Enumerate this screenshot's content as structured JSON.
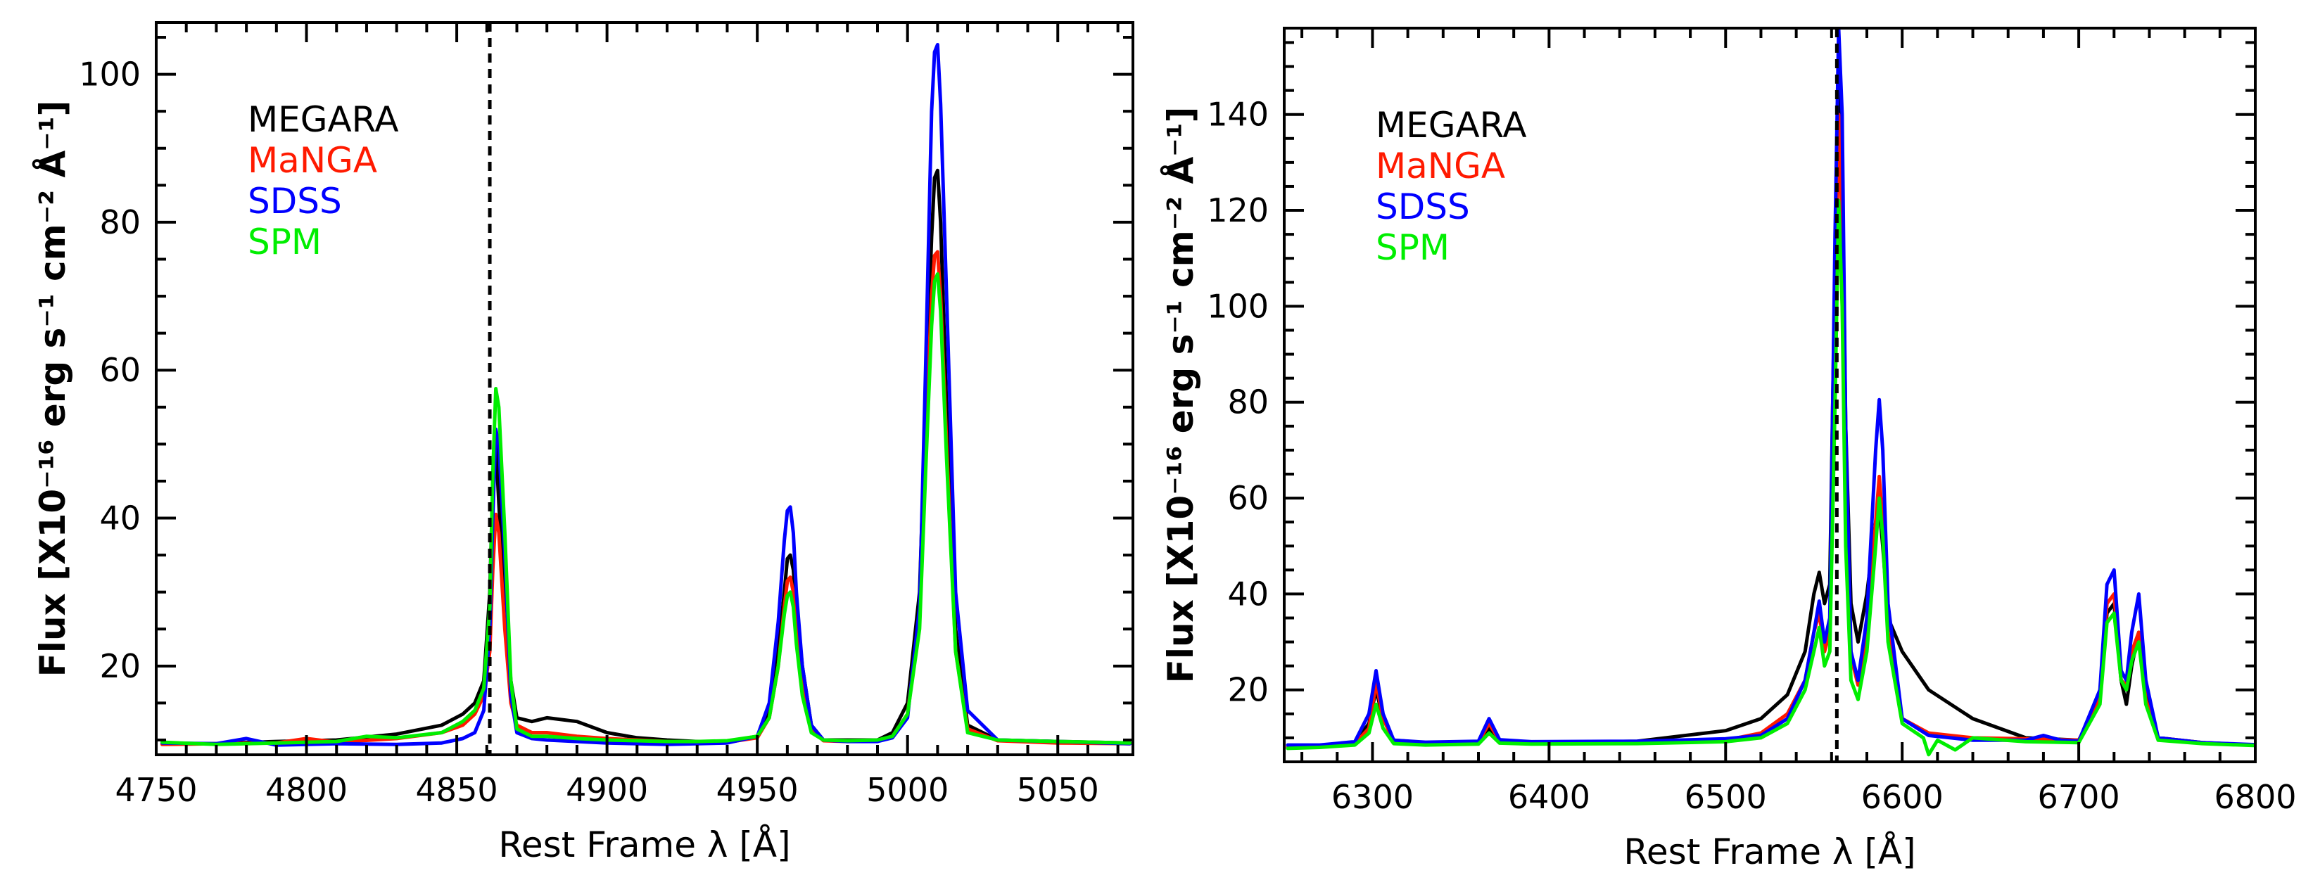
{
  "chart_data": [
    {
      "type": "line",
      "title": "",
      "xlabel": "Rest Frame λ [Å]",
      "ylabel": "Flux [X10⁻¹⁶ erg s⁻¹ cm⁻² Å⁻¹]",
      "xlim": [
        4750,
        5075
      ],
      "ylim": [
        8,
        107
      ],
      "xticks": [
        4750,
        4800,
        4850,
        4900,
        4950,
        5000,
        5050
      ],
      "yticks": [
        20,
        40,
        60,
        80,
        100
      ],
      "vline": 4861,
      "legend_position": "top-left",
      "series": [
        {
          "name": "MEGARA",
          "color": "#000000",
          "x": [
            4752,
            4770,
            4790,
            4810,
            4830,
            4845,
            4852,
            4856,
            4859,
            4861,
            4862,
            4863,
            4864,
            4866,
            4868,
            4870,
            4875,
            4880,
            4890,
            4900,
            4910,
            4920,
            4930,
            4940,
            4950,
            4954,
            4957,
            4959,
            4960,
            4961,
            4962,
            4963,
            4965,
            4968,
            4972,
            4980,
            4990,
            4995,
            5000,
            5004,
            5006,
            5008,
            5009,
            5010,
            5011,
            5013,
            5016,
            5020,
            5030,
            5050,
            5074
          ],
          "y": [
            9.5,
            9.5,
            9.8,
            10,
            10.8,
            12,
            13.5,
            15,
            18,
            30,
            45,
            50,
            42,
            28,
            18,
            13,
            12.5,
            13,
            12.5,
            11,
            10.3,
            10,
            9.8,
            9.8,
            10.5,
            14,
            22,
            30,
            34.5,
            35,
            33,
            28,
            20,
            12,
            10,
            10,
            10,
            11,
            15,
            30,
            55,
            78,
            86,
            87,
            80,
            55,
            25,
            12,
            10,
            9.8,
            9.6
          ]
        },
        {
          "name": "MaNGA",
          "color": "#ff1a00",
          "x": [
            4752,
            4770,
            4790,
            4800,
            4810,
            4830,
            4845,
            4852,
            4856,
            4859,
            4861,
            4862,
            4863,
            4864,
            4866,
            4868,
            4870,
            4875,
            4880,
            4890,
            4900,
            4910,
            4920,
            4930,
            4940,
            4950,
            4954,
            4957,
            4959,
            4960,
            4961,
            4962,
            4963,
            4965,
            4968,
            4972,
            4980,
            4990,
            4995,
            5000,
            5004,
            5006,
            5008,
            5009,
            5010,
            5011,
            5013,
            5016,
            5020,
            5030,
            5050,
            5074
          ],
          "y": [
            9.4,
            9.5,
            9.6,
            10.2,
            9.7,
            10.2,
            11,
            12,
            13.5,
            16,
            22,
            33,
            40.5,
            38,
            25,
            15,
            12,
            11,
            11,
            10.5,
            10.2,
            10,
            9.8,
            9.7,
            9.7,
            10.3,
            13,
            20,
            28,
            31.5,
            32,
            30,
            25,
            18,
            11.5,
            9.9,
            9.8,
            9.9,
            10.5,
            13.5,
            27,
            50,
            70,
            75.5,
            76,
            70,
            50,
            22,
            11.5,
            9.9,
            9.6,
            9.5
          ]
        },
        {
          "name": "SDSS",
          "color": "#0000ff",
          "x": [
            4752,
            4770,
            4780,
            4790,
            4810,
            4830,
            4845,
            4852,
            4856,
            4859,
            4861,
            4862,
            4863,
            4864,
            4866,
            4868,
            4870,
            4875,
            4880,
            4890,
            4900,
            4910,
            4920,
            4930,
            4940,
            4950,
            4954,
            4957,
            4959,
            4960,
            4961,
            4962,
            4963,
            4965,
            4968,
            4972,
            4980,
            4990,
            4995,
            5000,
            5004,
            5006,
            5008,
            5009,
            5010,
            5011,
            5013,
            5016,
            5020,
            5030,
            5050,
            5074
          ],
          "y": [
            9.6,
            9.5,
            10.2,
            9.3,
            9.5,
            9.4,
            9.6,
            10.2,
            11,
            14,
            25,
            40,
            52,
            50,
            35,
            16,
            11,
            10.2,
            10,
            9.8,
            9.6,
            9.5,
            9.4,
            9.5,
            9.6,
            10.5,
            15,
            26,
            37,
            41,
            41.5,
            38,
            30,
            20,
            12,
            10,
            9.8,
            9.8,
            10.3,
            13,
            28,
            60,
            95,
            103,
            104,
            96,
            70,
            30,
            14,
            10,
            9.8,
            9.5
          ]
        },
        {
          "name": "SPM",
          "color": "#00ee00",
          "x": [
            4752,
            4770,
            4790,
            4810,
            4820,
            4830,
            4845,
            4852,
            4856,
            4859,
            4861,
            4862,
            4863,
            4864,
            4866,
            4868,
            4870,
            4875,
            4880,
            4890,
            4900,
            4910,
            4920,
            4930,
            4940,
            4950,
            4954,
            4957,
            4959,
            4960,
            4961,
            4962,
            4963,
            4965,
            4968,
            4972,
            4980,
            4990,
            4995,
            5000,
            5004,
            5006,
            5008,
            5009,
            5010,
            5011,
            5013,
            5016,
            5020,
            5030,
            5050,
            5074
          ],
          "y": [
            9.7,
            9.4,
            9.6,
            9.8,
            10.5,
            10.3,
            11,
            12.5,
            14,
            17,
            28,
            46,
            57.5,
            55,
            38,
            18,
            11.5,
            10.5,
            10.5,
            10.2,
            10,
            9.9,
            9.8,
            9.8,
            9.9,
            10.5,
            13,
            20,
            27,
            29.5,
            30,
            28,
            23,
            16,
            11,
            10,
            9.9,
            10,
            10.5,
            13.5,
            25,
            46,
            66,
            72,
            73,
            68,
            48,
            22,
            11,
            10,
            9.8,
            9.6
          ]
        }
      ]
    },
    {
      "type": "line",
      "title": "",
      "xlabel": "Rest Frame λ [Å]",
      "ylabel": "Flux [X10⁻¹⁶ erg s⁻¹ cm⁻² Å⁻¹]",
      "xlim": [
        6250,
        6800
      ],
      "ylim": [
        5,
        158
      ],
      "xticks": [
        6300,
        6400,
        6500,
        6600,
        6700,
        6800
      ],
      "yticks": [
        20,
        40,
        60,
        80,
        100,
        120,
        140
      ],
      "vline": 6563,
      "legend_position": "top-left",
      "series": [
        {
          "name": "MEGARA",
          "color": "#000000",
          "x": [
            6252,
            6270,
            6290,
            6298,
            6302,
            6306,
            6312,
            6330,
            6360,
            6366,
            6372,
            6390,
            6450,
            6500,
            6520,
            6535,
            6545,
            6550,
            6553,
            6556,
            6559,
            6562,
            6564,
            6566,
            6568,
            6571,
            6575,
            6580,
            6585,
            6587,
            6589,
            6592,
            6600,
            6615,
            6640,
            6670,
            6700,
            6712,
            6716,
            6720,
            6724,
            6727,
            6730,
            6734,
            6738,
            6745,
            6770,
            6799
          ],
          "y": [
            8,
            8.2,
            9,
            13,
            20,
            14,
            9.5,
            9,
            9.2,
            12,
            9.5,
            9,
            9.3,
            11.5,
            14,
            19,
            28,
            40,
            44.5,
            38,
            42,
            110,
            150,
            130,
            75,
            38,
            30,
            40,
            55,
            58,
            50,
            35,
            28,
            20,
            14,
            10,
            9.5,
            18,
            36,
            38,
            22,
            17,
            25,
            32,
            20,
            10,
            9,
            8.5
          ]
        },
        {
          "name": "MaNGA",
          "color": "#ff1a00",
          "x": [
            6252,
            6270,
            6290,
            6298,
            6302,
            6306,
            6312,
            6330,
            6360,
            6366,
            6372,
            6390,
            6450,
            6500,
            6520,
            6535,
            6545,
            6550,
            6553,
            6556,
            6559,
            6562,
            6564,
            6566,
            6568,
            6571,
            6575,
            6580,
            6585,
            6587,
            6589,
            6592,
            6600,
            6615,
            6640,
            6670,
            6700,
            6712,
            6716,
            6720,
            6724,
            6727,
            6730,
            6734,
            6738,
            6745,
            6770,
            6799
          ],
          "y": [
            8,
            8.2,
            8.8,
            12,
            21.5,
            14,
            9.3,
            9,
            9.1,
            13,
            9.4,
            9,
            9.2,
            9.5,
            11,
            15,
            22,
            32,
            36,
            28,
            32,
            95,
            140,
            115,
            62,
            27,
            21,
            32,
            55,
            64.5,
            55,
            32,
            14,
            11,
            10,
            9.8,
            9.5,
            18,
            38,
            40,
            22,
            21,
            28,
            32,
            18,
            10,
            9,
            8.5
          ]
        },
        {
          "name": "SDSS",
          "color": "#0000ff",
          "x": [
            6252,
            6270,
            6290,
            6298,
            6302,
            6306,
            6312,
            6330,
            6360,
            6366,
            6372,
            6390,
            6450,
            6500,
            6520,
            6535,
            6545,
            6550,
            6553,
            6556,
            6559,
            6562,
            6564,
            6566,
            6568,
            6571,
            6575,
            6580,
            6585,
            6587,
            6589,
            6592,
            6600,
            6615,
            6640,
            6670,
            6680,
            6690,
            6700,
            6712,
            6716,
            6720,
            6724,
            6727,
            6730,
            6734,
            6738,
            6745,
            6770,
            6799
          ],
          "y": [
            8.5,
            8.5,
            9.2,
            15,
            24,
            15,
            9.5,
            9.1,
            9.3,
            14,
            9.6,
            9.2,
            9.3,
            9.8,
            10.5,
            14,
            22,
            32,
            38.5,
            30,
            35,
            115,
            158,
            140,
            75,
            28,
            22,
            35,
            70,
            80.5,
            70,
            38,
            14,
            10.5,
            9.5,
            9.5,
            10.5,
            9.5,
            9.3,
            20,
            42,
            45,
            24,
            22,
            32,
            40,
            22,
            10,
            9,
            8.6
          ]
        },
        {
          "name": "SPM",
          "color": "#00ee00",
          "x": [
            6252,
            6270,
            6290,
            6298,
            6302,
            6306,
            6312,
            6330,
            6360,
            6366,
            6372,
            6390,
            6450,
            6500,
            6520,
            6535,
            6545,
            6550,
            6553,
            6556,
            6559,
            6562,
            6564,
            6566,
            6568,
            6571,
            6575,
            6580,
            6585,
            6587,
            6589,
            6592,
            6600,
            6612,
            6615,
            6620,
            6630,
            6640,
            6670,
            6700,
            6712,
            6716,
            6720,
            6724,
            6727,
            6730,
            6734,
            6738,
            6745,
            6770,
            6799
          ],
          "y": [
            7.8,
            8,
            8.5,
            11,
            17,
            12,
            8.8,
            8.5,
            8.7,
            11,
            8.9,
            8.7,
            8.8,
            9.2,
            10,
            13,
            20,
            28,
            33,
            25,
            28,
            80,
            122,
            100,
            50,
            22,
            18,
            28,
            50,
            60,
            52,
            30,
            13,
            10,
            6.5,
            9.5,
            7.5,
            10,
            9.2,
            9,
            17,
            34,
            36,
            22,
            20,
            26,
            30,
            17,
            9.5,
            8.8,
            8.4
          ]
        }
      ]
    }
  ]
}
